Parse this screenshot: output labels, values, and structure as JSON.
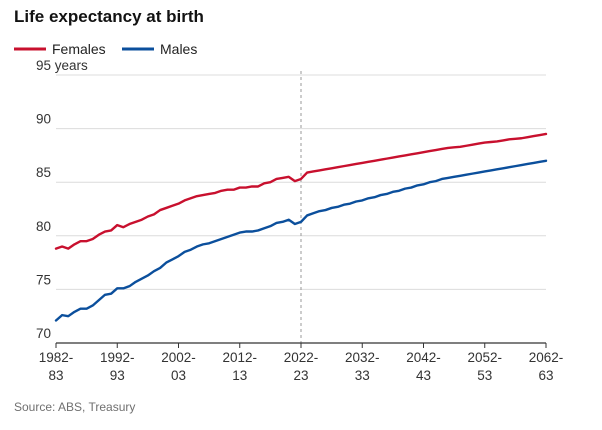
{
  "chart_data": {
    "type": "line",
    "title": "Life expectancy at birth",
    "ylabel_unit": "years",
    "ylim": [
      70,
      95
    ],
    "yticks": [
      70,
      75,
      80,
      85,
      90,
      95
    ],
    "ytick_labels": [
      "70",
      "75",
      "80",
      "85",
      "90",
      "95 years"
    ],
    "xticks": [
      {
        "year": 1982,
        "line1": "1982-",
        "line2": "83"
      },
      {
        "year": 1992,
        "line1": "1992-",
        "line2": "93"
      },
      {
        "year": 2002,
        "line1": "2002-",
        "line2": "03"
      },
      {
        "year": 2012,
        "line1": "2012-",
        "line2": "13"
      },
      {
        "year": 2022,
        "line1": "2022-",
        "line2": "23"
      },
      {
        "year": 2032,
        "line1": "2032-",
        "line2": "33"
      },
      {
        "year": 2042,
        "line1": "2042-",
        "line2": "43"
      },
      {
        "year": 2052,
        "line1": "2052-",
        "line2": "53"
      },
      {
        "year": 2062,
        "line1": "2062-",
        "line2": "63"
      }
    ],
    "xlim": [
      1982,
      2062
    ],
    "projection_start": 2022,
    "grid": true,
    "legend_placement": "top-left",
    "source": "Source: ABS, Treasury",
    "series": [
      {
        "name": "Females",
        "color": "#c8102e",
        "x": [
          1982,
          1983,
          1984,
          1985,
          1986,
          1987,
          1988,
          1989,
          1990,
          1991,
          1992,
          1993,
          1994,
          1995,
          1996,
          1997,
          1998,
          1999,
          2000,
          2001,
          2002,
          2003,
          2004,
          2005,
          2006,
          2007,
          2008,
          2009,
          2010,
          2011,
          2012,
          2013,
          2014,
          2015,
          2016,
          2017,
          2018,
          2019,
          2020,
          2021,
          2022,
          2023,
          2024,
          2025,
          2026,
          2027,
          2028,
          2029,
          2030,
          2031,
          2032,
          2033,
          2034,
          2035,
          2036,
          2037,
          2038,
          2039,
          2040,
          2041,
          2042,
          2043,
          2044,
          2045,
          2046,
          2047,
          2048,
          2049,
          2050,
          2051,
          2052,
          2053,
          2054,
          2055,
          2056,
          2057,
          2058,
          2059,
          2060,
          2061,
          2062
        ],
        "values": [
          78.8,
          79.0,
          78.8,
          79.2,
          79.5,
          79.5,
          79.7,
          80.1,
          80.4,
          80.5,
          81.0,
          80.8,
          81.1,
          81.3,
          81.5,
          81.8,
          82.0,
          82.4,
          82.6,
          82.8,
          83.0,
          83.3,
          83.5,
          83.7,
          83.8,
          83.9,
          84.0,
          84.2,
          84.3,
          84.3,
          84.5,
          84.5,
          84.6,
          84.6,
          84.9,
          85.0,
          85.3,
          85.4,
          85.5,
          85.1,
          85.3,
          85.9,
          86.0,
          86.1,
          86.2,
          86.3,
          86.4,
          86.5,
          86.6,
          86.7,
          86.8,
          86.9,
          87.0,
          87.1,
          87.2,
          87.3,
          87.4,
          87.5,
          87.6,
          87.7,
          87.8,
          87.9,
          88.0,
          88.1,
          88.2,
          88.25,
          88.3,
          88.4,
          88.5,
          88.6,
          88.7,
          88.75,
          88.8,
          88.9,
          89.0,
          89.05,
          89.1,
          89.2,
          89.3,
          89.4,
          89.5
        ]
      },
      {
        "name": "Males",
        "color": "#0b4f9c",
        "x": [
          1982,
          1983,
          1984,
          1985,
          1986,
          1987,
          1988,
          1989,
          1990,
          1991,
          1992,
          1993,
          1994,
          1995,
          1996,
          1997,
          1998,
          1999,
          2000,
          2001,
          2002,
          2003,
          2004,
          2005,
          2006,
          2007,
          2008,
          2009,
          2010,
          2011,
          2012,
          2013,
          2014,
          2015,
          2016,
          2017,
          2018,
          2019,
          2020,
          2021,
          2022,
          2023,
          2024,
          2025,
          2026,
          2027,
          2028,
          2029,
          2030,
          2031,
          2032,
          2033,
          2034,
          2035,
          2036,
          2037,
          2038,
          2039,
          2040,
          2041,
          2042,
          2043,
          2044,
          2045,
          2046,
          2047,
          2048,
          2049,
          2050,
          2051,
          2052,
          2053,
          2054,
          2055,
          2056,
          2057,
          2058,
          2059,
          2060,
          2061,
          2062
        ],
        "values": [
          72.1,
          72.6,
          72.5,
          72.9,
          73.2,
          73.2,
          73.5,
          74.0,
          74.5,
          74.6,
          75.1,
          75.1,
          75.3,
          75.7,
          76.0,
          76.3,
          76.7,
          77.0,
          77.5,
          77.8,
          78.1,
          78.5,
          78.7,
          79.0,
          79.2,
          79.3,
          79.5,
          79.7,
          79.9,
          80.1,
          80.3,
          80.4,
          80.4,
          80.5,
          80.7,
          80.9,
          81.2,
          81.3,
          81.5,
          81.1,
          81.3,
          81.9,
          82.1,
          82.3,
          82.4,
          82.6,
          82.7,
          82.9,
          83.0,
          83.2,
          83.3,
          83.5,
          83.6,
          83.8,
          83.9,
          84.1,
          84.2,
          84.4,
          84.5,
          84.7,
          84.8,
          85.0,
          85.1,
          85.3,
          85.4,
          85.5,
          85.6,
          85.7,
          85.8,
          85.9,
          86.0,
          86.1,
          86.2,
          86.3,
          86.4,
          86.5,
          86.6,
          86.7,
          86.8,
          86.9,
          87.0
        ]
      }
    ]
  }
}
